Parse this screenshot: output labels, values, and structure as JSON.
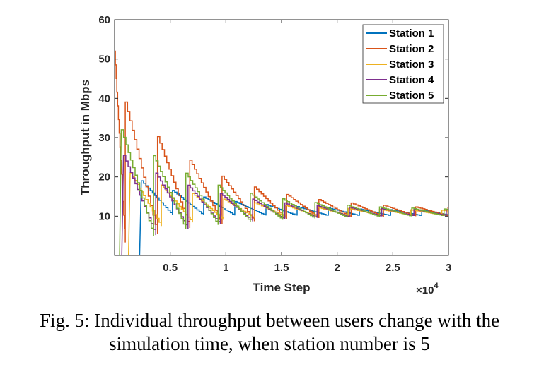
{
  "caption": {
    "line1": "Fig. 5: Individual throughput between users change with the",
    "line2": "simulation time, when station number is 5"
  },
  "chart_data": {
    "type": "line",
    "title": "",
    "xlabel": "Time Step",
    "ylabel": "Throughput in Mbps",
    "x_multiplier_label": "×10",
    "x_multiplier_exponent": "4",
    "xlim": [
      0,
      30000
    ],
    "ylim": [
      0,
      60
    ],
    "xticks": [
      5000,
      10000,
      15000,
      20000,
      25000,
      30000
    ],
    "xtick_labels": [
      "0.5",
      "1",
      "1.5",
      "2",
      "2.5",
      "3"
    ],
    "yticks": [
      10,
      20,
      30,
      40,
      50,
      60
    ],
    "ytick_labels": [
      "10",
      "20",
      "30",
      "40",
      "50",
      "60"
    ],
    "grid": false,
    "legend_position": "top-right",
    "series": [
      {
        "name": "Station 1",
        "color": "#0072BD",
        "start": 2400,
        "period": 2800,
        "phase_start": 1.0,
        "y_start": 0,
        "peak_max": 19,
        "trough_min": 10.3,
        "peak_final": 11.3,
        "trough_final": 10.1
      },
      {
        "name": "Station 2",
        "color": "#D95319",
        "start": 0,
        "period": 2900,
        "phase_start": 0.33,
        "y_start": 0,
        "peak_max": 52,
        "trough_min": 3.3,
        "peak_final": 11.5,
        "trough_final": 10.2
      },
      {
        "name": "Station 3",
        "color": "#EDB120",
        "start": 1400,
        "period": 2800,
        "phase_start": 1.0,
        "y_start": 0,
        "peak_max": 21,
        "trough_min": 7.5,
        "peak_final": 11.3,
        "trough_final": 10.4
      },
      {
        "name": "Station 4",
        "color": "#7E2F8E",
        "start": 800,
        "period": 2900,
        "phase_start": 0.0,
        "y_start": 0,
        "peak_max": 25.5,
        "trough_min": 5.2,
        "peak_final": 11.3,
        "trough_final": 10.3
      },
      {
        "name": "Station 5",
        "color": "#77AC30",
        "start": 600,
        "period": 2900,
        "phase_start": 1.0,
        "y_start": 0,
        "peak_max": 32,
        "trough_min": 5.0,
        "peak_final": 11.4,
        "trough_final": 10.2
      }
    ]
  }
}
